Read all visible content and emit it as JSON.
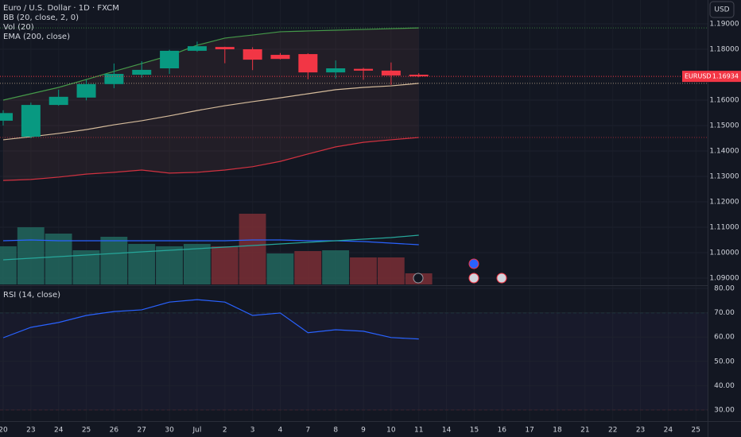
{
  "header": {
    "title": "Euro / U.S. Dollar · 1D · FXCM",
    "indicators": [
      "BB (20, close, 2, 0)",
      "Vol (20)",
      "EMA (200, close)"
    ],
    "currency": "USD"
  },
  "chart_data": [
    {
      "type": "candlestick",
      "categories": [
        "20",
        "23",
        "24",
        "25",
        "26",
        "27",
        "30",
        "Jul",
        "2",
        "3",
        "4",
        "7",
        "8",
        "9",
        "10",
        "11",
        "14",
        "15",
        "16",
        "17",
        "18",
        "21",
        "22",
        "23",
        "24",
        "25"
      ],
      "open": [
        1.1519,
        1.1456,
        1.1581,
        1.161,
        1.1663,
        1.17,
        1.1725,
        1.1794,
        1.1809,
        1.18,
        1.1778,
        1.1781,
        1.1709,
        1.1723,
        1.1716,
        1.17,
        null,
        null,
        null,
        null,
        null,
        null,
        null,
        null,
        null,
        null
      ],
      "high": [
        1.156,
        1.159,
        1.1641,
        1.168,
        1.1744,
        1.1753,
        1.1798,
        1.183,
        1.181,
        1.1808,
        1.1785,
        1.1784,
        1.1756,
        1.1727,
        1.1748,
        1.1706,
        null,
        null,
        null,
        null,
        null,
        null,
        null,
        null,
        null,
        null
      ],
      "low": [
        1.15,
        1.145,
        1.1578,
        1.1599,
        1.1647,
        1.1688,
        1.1703,
        1.179,
        1.1745,
        1.1718,
        1.176,
        1.1682,
        1.1685,
        1.168,
        1.166,
        1.169,
        null,
        null,
        null,
        null,
        null,
        null,
        null,
        null,
        null,
        null
      ],
      "close": [
        1.1549,
        1.1581,
        1.1613,
        1.1663,
        1.1703,
        1.1719,
        1.1794,
        1.1812,
        1.18,
        1.1759,
        1.1762,
        1.1709,
        1.1725,
        1.1716,
        1.1697,
        1.16934,
        null,
        null,
        null,
        null,
        null,
        null,
        null,
        null,
        null,
        null
      ],
      "up_color": "#089981",
      "down_color": "#f23645",
      "ylim": [
        1.0875,
        1.199375
      ],
      "yticks": [
        {
          "value": 1.19,
          "label": "1.19000"
        },
        {
          "value": 1.18,
          "label": "1.18000"
        },
        {
          "value": 1.16,
          "label": "1.16000"
        },
        {
          "value": 1.15,
          "label": "1.15000"
        },
        {
          "value": 1.14,
          "label": "1.14000"
        },
        {
          "value": 1.13,
          "label": "1.13000"
        },
        {
          "value": 1.12,
          "label": "1.12000"
        },
        {
          "value": 1.11,
          "label": "1.11000"
        },
        {
          "value": 1.1,
          "label": "1.10000"
        },
        {
          "value": 1.09,
          "label": "1.09000"
        }
      ],
      "overlays": [
        {
          "color": "#4caf50",
          "values": [
            1.16,
            1.1625,
            1.165,
            1.1681,
            1.1713,
            1.1744,
            1.1775,
            1.1816,
            1.1844,
            1.1856,
            1.1869,
            1.1872,
            1.1875,
            1.1878,
            1.1881,
            1.1884
          ]
        },
        {
          "color": "#f23645",
          "values": [
            1.1284,
            1.1288,
            1.1297,
            1.1309,
            1.1316,
            1.1325,
            1.1313,
            1.1316,
            1.1325,
            1.1338,
            1.1359,
            1.1388,
            1.1416,
            1.1434,
            1.1444,
            1.1453
          ]
        },
        {
          "color": "#f5d7b0",
          "values": [
            1.1444,
            1.1456,
            1.1469,
            1.1484,
            1.1503,
            1.1519,
            1.1538,
            1.1559,
            1.1578,
            1.1594,
            1.1609,
            1.1625,
            1.1641,
            1.165,
            1.1656,
            1.1666
          ]
        }
      ],
      "symbol": "EURUSD",
      "last_price": {
        "value": 1.16934,
        "label": "1.16934"
      }
    },
    {
      "type": "bar",
      "values": [
        48,
        72,
        64,
        43,
        60,
        51,
        48,
        51,
        48,
        89,
        39,
        42,
        43,
        34,
        34,
        14
      ],
      "colors": [
        "#22675e",
        "#22675e",
        "#22675e",
        "#22675e",
        "#22675e",
        "#22675e",
        "#22675e",
        "#22675e",
        "#7a2e35",
        "#7a2e35",
        "#22675e",
        "#7a2e35",
        "#22675e",
        "#7a2e35",
        "#7a2e35",
        "#7a2e35"
      ],
      "ylim": [
        0,
        100
      ],
      "overlays": [
        {
          "color": "#2962ff",
          "values": [
            55,
            56,
            55,
            55,
            55,
            55,
            55,
            55,
            55,
            56,
            56,
            55,
            55,
            54,
            52,
            50
          ]
        },
        {
          "color": "#26a69a",
          "values": [
            31,
            33,
            35,
            37,
            39,
            41,
            43,
            45,
            47,
            49,
            51,
            53,
            55,
            57,
            59,
            62
          ]
        }
      ]
    },
    {
      "type": "line",
      "title": "RSI (14, close)",
      "values": [
        59.7,
        64,
        66,
        68.9,
        70.5,
        71.2,
        74.4,
        75.4,
        74.4,
        68.9,
        69.9,
        61.8,
        63,
        62.4,
        59.8,
        59.2
      ],
      "color": "#2962ff",
      "ylim": [
        25.4,
        81
      ],
      "yticks": [
        {
          "value": 80,
          "label": "80.00"
        },
        {
          "value": 70,
          "label": "70.00"
        },
        {
          "value": 60,
          "label": "60.00"
        },
        {
          "value": 50,
          "label": "50.00"
        },
        {
          "value": 40,
          "label": "40.00"
        },
        {
          "value": 30,
          "label": "30.00"
        }
      ],
      "bands": [
        70,
        30
      ]
    }
  ]
}
